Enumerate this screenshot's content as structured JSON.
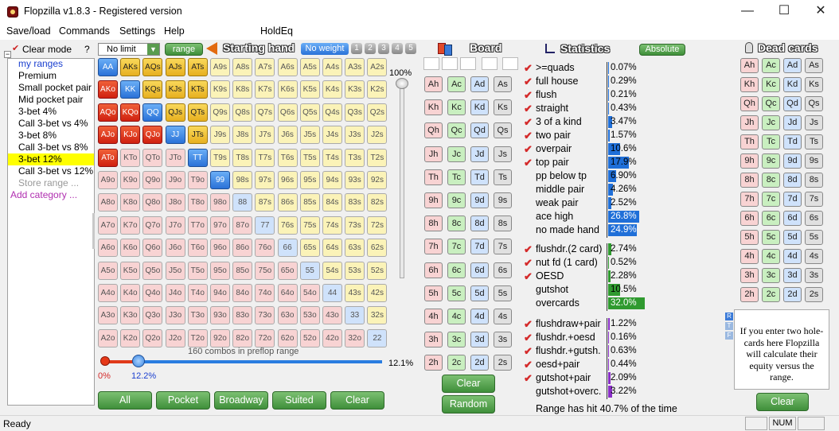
{
  "window": {
    "title": "Flopzilla v1.8.3 - Registered version",
    "minimize_glyph": "—",
    "maximize_glyph": "☐",
    "close_glyph": "✕"
  },
  "menu": [
    "Save/load",
    "Commands",
    "Settings",
    "Help",
    "HoldEq"
  ],
  "left_panel": {
    "clear_mode": "Clear mode",
    "help": "?",
    "tree_root": "my ranges",
    "items": [
      "Premium",
      "Small pocket pair",
      "Mid pocket pair",
      "3-bet 4%",
      "Call 3-bet vs 4%",
      "3-bet 8%",
      "Call 3-bet vs 8%",
      "3-bet 12%",
      "Call 3-bet vs 12%",
      "Store range ...",
      "Add category ..."
    ],
    "selected_index": 7
  },
  "range_toolbar": {
    "limit": "No limit",
    "range_btn": "range",
    "title": "Starting hand",
    "no_weight": "No weight",
    "weights": [
      "1",
      "2",
      "3",
      "4",
      "5"
    ]
  },
  "grid": {
    "ranks": [
      "A",
      "K",
      "Q",
      "J",
      "T",
      "9",
      "8",
      "7",
      "6",
      "5",
      "4",
      "3",
      "2"
    ],
    "selected": [
      "AA",
      "AKs",
      "AQs",
      "AJs",
      "ATs",
      "AKo",
      "KK",
      "KQs",
      "KJs",
      "KTs",
      "AQo",
      "KQo",
      "QQ",
      "QJs",
      "QTs",
      "AJo",
      "KJo",
      "QJo",
      "JJ",
      "JTs",
      "ATo",
      "TT",
      "99"
    ]
  },
  "range_info": {
    "combos": "160 combos in preflop range",
    "pct_left": "0%",
    "pct_mid": "12.2%",
    "pct_right": "12.1%",
    "slider_top": "100%",
    "range_pct": 12.2
  },
  "range_buttons": [
    "All",
    "Pocket",
    "Broadway",
    "Suited",
    "Clear"
  ],
  "board": {
    "title": "Board",
    "ranks": [
      "A",
      "K",
      "Q",
      "J",
      "T",
      "9",
      "8",
      "7",
      "6",
      "5",
      "4",
      "3",
      "2"
    ],
    "suits": [
      "h",
      "c",
      "d",
      "s"
    ],
    "clear": "Clear",
    "random": "Random"
  },
  "statistics": {
    "title": "Statistics",
    "absolute": "Absolute",
    "groups": [
      [
        {
          "label": ">=quads",
          "value": "0.07%",
          "check": true,
          "pct": 0.07,
          "color": "#1f6fd8"
        },
        {
          "label": "full house",
          "value": "0.29%",
          "check": true,
          "pct": 0.29,
          "color": "#1f6fd8"
        },
        {
          "label": "flush",
          "value": "0.21%",
          "check": true,
          "pct": 0.21,
          "color": "#1f6fd8"
        },
        {
          "label": "straight",
          "value": "0.43%",
          "check": true,
          "pct": 0.43,
          "color": "#1f6fd8"
        },
        {
          "label": "3 of a kind",
          "value": "3.47%",
          "check": true,
          "pct": 3.47,
          "color": "#1f6fd8"
        },
        {
          "label": "two pair",
          "value": "1.57%",
          "check": true,
          "pct": 1.57,
          "color": "#1f6fd8"
        },
        {
          "label": "overpair",
          "value": "10.6%",
          "check": true,
          "pct": 10.6,
          "color": "#1f6fd8"
        },
        {
          "label": "top pair",
          "value": "17.9%",
          "check": true,
          "pct": 17.9,
          "color": "#1f6fd8"
        },
        {
          "label": "pp below tp",
          "value": "6.90%",
          "check": false,
          "pct": 6.9,
          "color": "#1f6fd8"
        },
        {
          "label": "middle pair",
          "value": "4.26%",
          "check": false,
          "pct": 4.26,
          "color": "#1f6fd8"
        },
        {
          "label": "weak pair",
          "value": "2.52%",
          "check": false,
          "pct": 2.52,
          "color": "#1f6fd8"
        },
        {
          "label": "ace high",
          "value": "26.8%",
          "check": false,
          "pct": 26.8,
          "color": "#1f6fd8"
        },
        {
          "label": "no made hand",
          "value": "24.9%",
          "check": false,
          "pct": 24.9,
          "color": "#1f6fd8"
        }
      ],
      [
        {
          "label": "flushdr.(2 card)",
          "value": "2.74%",
          "check": true,
          "pct": 2.74,
          "color": "#2f9a2f"
        },
        {
          "label": "nut fd (1 card)",
          "value": "0.52%",
          "check": true,
          "pct": 0.52,
          "color": "#2f9a2f"
        },
        {
          "label": "OESD",
          "value": "2.28%",
          "check": true,
          "pct": 2.28,
          "color": "#2f9a2f"
        },
        {
          "label": "gutshot",
          "value": "10.5%",
          "check": false,
          "pct": 10.5,
          "color": "#2f9a2f"
        },
        {
          "label": "overcards",
          "value": "32.0%",
          "check": false,
          "pct": 32.0,
          "color": "#2f9a2f"
        }
      ],
      [
        {
          "label": "flushdraw+pair",
          "value": "1.22%",
          "check": true,
          "pct": 1.22,
          "color": "#8a2fc8"
        },
        {
          "label": "flushdr.+oesd",
          "value": "0.16%",
          "check": true,
          "pct": 0.16,
          "color": "#8a2fc8"
        },
        {
          "label": "flushdr.+gutsh.",
          "value": "0.63%",
          "check": true,
          "pct": 0.63,
          "color": "#8a2fc8"
        },
        {
          "label": "oesd+pair",
          "value": "0.44%",
          "check": true,
          "pct": 0.44,
          "color": "#8a2fc8"
        },
        {
          "label": "gutshot+pair",
          "value": "2.09%",
          "check": true,
          "pct": 2.09,
          "color": "#8a2fc8"
        },
        {
          "label": "gutshot+overc.",
          "value": "3.22%",
          "check": false,
          "pct": 3.22,
          "color": "#8a2fc8"
        }
      ]
    ],
    "summary": "Range has hit 40.7% of the time"
  },
  "dead_cards": {
    "title": "Dead cards",
    "hint": "If you enter two hole-cards here Flopzilla will calculate their equity versus the range.",
    "clear": "Clear",
    "rtf": [
      "R",
      "T",
      "F"
    ]
  },
  "status": {
    "text": "Ready",
    "num": "NUM"
  }
}
